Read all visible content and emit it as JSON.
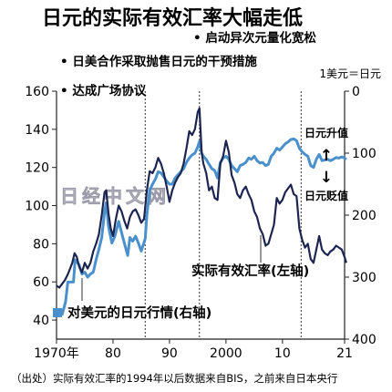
{
  "chart_data": {
    "type": "line",
    "title": "日元的实际有效汇率大幅走低",
    "x_tick_labels": [
      "1970年",
      "80",
      "90",
      "2000",
      "10",
      "21"
    ],
    "x_range": [
      1970,
      2021
    ],
    "y_left": {
      "ticks": [
        "160",
        "140",
        "120",
        "100",
        "80",
        "60",
        "40"
      ],
      "range": [
        30,
        160
      ]
    },
    "y_right": {
      "title": "1美元＝日元",
      "ticks": [
        "0",
        "100",
        "200",
        "300",
        "400"
      ],
      "range": [
        0,
        400
      ],
      "inverted": true
    },
    "events": [
      {
        "year": 1985.7,
        "label": "达成广场协议"
      },
      {
        "year": 1995.3,
        "label": "日美合作采取抛售日元的干预措施"
      },
      {
        "year": 2013.3,
        "label": "启动异次元量化宽松"
      }
    ],
    "series": [
      {
        "name": "实际有效汇率(左轴)",
        "axis": "left",
        "color": "#1c2550",
        "points": [
          [
            1970.0,
            58
          ],
          [
            1970.5,
            57
          ],
          [
            1971.0,
            59
          ],
          [
            1971.5,
            61
          ],
          [
            1972.0,
            64
          ],
          [
            1972.4,
            67
          ],
          [
            1972.8,
            70
          ],
          [
            1973.2,
            75
          ],
          [
            1973.6,
            73
          ],
          [
            1974.0,
            68
          ],
          [
            1974.5,
            65
          ],
          [
            1975.0,
            70
          ],
          [
            1975.5,
            67
          ],
          [
            1976.0,
            70
          ],
          [
            1976.5,
            76
          ],
          [
            1977.0,
            80
          ],
          [
            1977.5,
            85
          ],
          [
            1978.0,
            95
          ],
          [
            1978.5,
            107
          ],
          [
            1978.8,
            108
          ],
          [
            1979.2,
            96
          ],
          [
            1979.6,
            88
          ],
          [
            1980.0,
            84
          ],
          [
            1980.5,
            93
          ],
          [
            1981.0,
            100
          ],
          [
            1981.5,
            97
          ],
          [
            1982.0,
            92
          ],
          [
            1982.5,
            88
          ],
          [
            1983.0,
            94
          ],
          [
            1983.5,
            97
          ],
          [
            1984.0,
            98
          ],
          [
            1984.5,
            95
          ],
          [
            1985.0,
            91
          ],
          [
            1985.5,
            93
          ],
          [
            1986.0,
            108
          ],
          [
            1986.5,
            118
          ],
          [
            1987.0,
            117
          ],
          [
            1987.5,
            120
          ],
          [
            1988.0,
            125
          ],
          [
            1988.5,
            122
          ],
          [
            1989.0,
            117
          ],
          [
            1989.5,
            110
          ],
          [
            1990.0,
            102
          ],
          [
            1990.5,
            108
          ],
          [
            1991.0,
            112
          ],
          [
            1991.5,
            115
          ],
          [
            1992.0,
            117
          ],
          [
            1992.5,
            122
          ],
          [
            1993.0,
            130
          ],
          [
            1993.5,
            139
          ],
          [
            1994.0,
            137
          ],
          [
            1994.5,
            140
          ],
          [
            1995.0,
            149
          ],
          [
            1995.3,
            151
          ],
          [
            1995.7,
            128
          ],
          [
            1996.0,
            122
          ],
          [
            1996.5,
            117
          ],
          [
            1997.0,
            108
          ],
          [
            1997.5,
            110
          ],
          [
            1998.0,
            104
          ],
          [
            1998.5,
            103
          ],
          [
            1999.0,
            122
          ],
          [
            1999.5,
            126
          ],
          [
            2000.0,
            134
          ],
          [
            2000.5,
            128
          ],
          [
            2001.0,
            116
          ],
          [
            2001.5,
            112
          ],
          [
            2002.0,
            106
          ],
          [
            2002.5,
            104
          ],
          [
            2003.0,
            108
          ],
          [
            2003.5,
            110
          ],
          [
            2004.0,
            106
          ],
          [
            2004.5,
            103
          ],
          [
            2005.0,
            97
          ],
          [
            2005.5,
            94
          ],
          [
            2006.0,
            88
          ],
          [
            2006.5,
            85
          ],
          [
            2007.0,
            79
          ],
          [
            2007.5,
            80
          ],
          [
            2008.0,
            85
          ],
          [
            2008.5,
            90
          ],
          [
            2009.0,
            104
          ],
          [
            2009.5,
            101
          ],
          [
            2010.0,
            103
          ],
          [
            2010.5,
            107
          ],
          [
            2011.0,
            109
          ],
          [
            2011.5,
            111
          ],
          [
            2012.0,
            106
          ],
          [
            2012.5,
            105
          ],
          [
            2013.0,
            88
          ],
          [
            2013.5,
            82
          ],
          [
            2014.0,
            78
          ],
          [
            2014.5,
            80
          ],
          [
            2015.0,
            72
          ],
          [
            2015.5,
            70
          ],
          [
            2016.0,
            77
          ],
          [
            2016.5,
            84
          ],
          [
            2017.0,
            77
          ],
          [
            2017.5,
            75
          ],
          [
            2018.0,
            74
          ],
          [
            2018.5,
            76
          ],
          [
            2019.0,
            77
          ],
          [
            2019.5,
            79
          ],
          [
            2020.0,
            78
          ],
          [
            2020.5,
            77
          ],
          [
            2021.0,
            73
          ],
          [
            2021.3,
            70
          ]
        ]
      },
      {
        "name": "对美元的日元行情(右轴)",
        "axis": "right",
        "color": "#4a90cc",
        "points": [
          [
            1970.0,
            360
          ],
          [
            1971.0,
            360
          ],
          [
            1971.6,
            340
          ],
          [
            1972.0,
            308
          ],
          [
            1973.0,
            308
          ],
          [
            1973.3,
            272
          ],
          [
            1974.0,
            280
          ],
          [
            1974.5,
            295
          ],
          [
            1975.0,
            292
          ],
          [
            1975.5,
            300
          ],
          [
            1976.0,
            295
          ],
          [
            1976.5,
            292
          ],
          [
            1977.0,
            272
          ],
          [
            1977.5,
            255
          ],
          [
            1978.0,
            236
          ],
          [
            1978.5,
            195
          ],
          [
            1978.8,
            180
          ],
          [
            1979.2,
            218
          ],
          [
            1979.8,
            245
          ],
          [
            1980.3,
            235
          ],
          [
            1981.0,
            210
          ],
          [
            1981.5,
            228
          ],
          [
            1982.0,
            245
          ],
          [
            1982.6,
            265
          ],
          [
            1983.0,
            236
          ],
          [
            1983.5,
            242
          ],
          [
            1984.0,
            234
          ],
          [
            1984.5,
            245
          ],
          [
            1985.0,
            258
          ],
          [
            1985.7,
            238
          ],
          [
            1986.0,
            200
          ],
          [
            1986.5,
            160
          ],
          [
            1987.0,
            150
          ],
          [
            1987.5,
            142
          ],
          [
            1988.0,
            130
          ],
          [
            1988.5,
            132
          ],
          [
            1989.0,
            138
          ],
          [
            1989.5,
            145
          ],
          [
            1990.0,
            150
          ],
          [
            1990.5,
            150
          ],
          [
            1991.0,
            140
          ],
          [
            1991.5,
            135
          ],
          [
            1992.0,
            130
          ],
          [
            1992.5,
            125
          ],
          [
            1993.0,
            115
          ],
          [
            1993.5,
            108
          ],
          [
            1994.0,
            103
          ],
          [
            1994.5,
            100
          ],
          [
            1995.0,
            90
          ],
          [
            1995.3,
            81
          ],
          [
            1995.7,
            100
          ],
          [
            1996.0,
            105
          ],
          [
            1996.5,
            110
          ],
          [
            1997.0,
            118
          ],
          [
            1997.5,
            125
          ],
          [
            1998.0,
            128
          ],
          [
            1998.5,
            140
          ],
          [
            1999.0,
            115
          ],
          [
            1999.5,
            108
          ],
          [
            2000.0,
            105
          ],
          [
            2000.5,
            110
          ],
          [
            2001.0,
            120
          ],
          [
            2001.5,
            125
          ],
          [
            2002.0,
            130
          ],
          [
            2002.5,
            120
          ],
          [
            2003.0,
            118
          ],
          [
            2003.5,
            115
          ],
          [
            2004.0,
            108
          ],
          [
            2004.5,
            110
          ],
          [
            2005.0,
            105
          ],
          [
            2005.5,
            112
          ],
          [
            2006.0,
            116
          ],
          [
            2006.5,
            115
          ],
          [
            2007.0,
            120
          ],
          [
            2007.5,
            118
          ],
          [
            2008.0,
            105
          ],
          [
            2008.5,
            100
          ],
          [
            2009.0,
            92
          ],
          [
            2009.5,
            95
          ],
          [
            2010.0,
            90
          ],
          [
            2010.5,
            85
          ],
          [
            2011.0,
            82
          ],
          [
            2011.5,
            78
          ],
          [
            2012.0,
            77
          ],
          [
            2012.5,
            80
          ],
          [
            2013.0,
            92
          ],
          [
            2013.5,
            98
          ],
          [
            2014.0,
            102
          ],
          [
            2014.5,
            105
          ],
          [
            2015.0,
            120
          ],
          [
            2015.5,
            123
          ],
          [
            2016.0,
            110
          ],
          [
            2016.5,
            102
          ],
          [
            2017.0,
            112
          ],
          [
            2017.5,
            111
          ],
          [
            2018.0,
            110
          ],
          [
            2018.5,
            112
          ],
          [
            2019.0,
            110
          ],
          [
            2019.5,
            107
          ],
          [
            2020.0,
            108
          ],
          [
            2020.5,
            106
          ],
          [
            2021.0,
            108
          ],
          [
            2021.3,
            110
          ]
        ]
      }
    ],
    "annotations": {
      "up_label": "日元升值",
      "down_label": "日元贬值",
      "watermark": "日经中文网"
    },
    "source_note": "（出处）实际有效汇率的1994年以后数据来自BIS，之前来自日本央行"
  }
}
